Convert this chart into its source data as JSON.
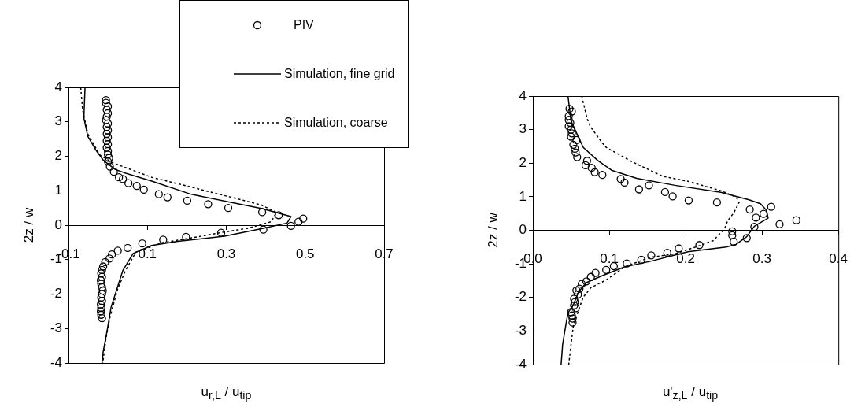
{
  "chart_data": [
    {
      "type": "scatter",
      "xlabel": "u$_{r,L}$ / u$_{tip}$",
      "ylabel": "2z / w",
      "xlim": [
        -0.1,
        0.7
      ],
      "xticks": [
        -0.1,
        0.1,
        0.3,
        0.5,
        0.7
      ],
      "ylim": [
        -4,
        4
      ],
      "yticks": [
        -4,
        -3,
        -2,
        -1,
        0,
        1,
        2,
        3,
        4
      ],
      "legend": "top right",
      "series": [
        {
          "name": "PIV",
          "type": "scatter",
          "marker": "circle",
          "color": "#000000",
          "x": [
            -0.005,
            -0.005,
            0.0,
            -0.003,
            0.0,
            -0.003,
            -0.005,
            0.0,
            -0.003,
            0.0,
            -0.003,
            0.0,
            -0.003,
            0.0,
            -0.003,
            0.0,
            0.0,
            0.003,
            0.0,
            0.005,
            0.015,
            0.028,
            0.038,
            0.052,
            0.073,
            0.091,
            0.129,
            0.151,
            0.201,
            0.254,
            0.305,
            0.391,
            0.433,
            0.495,
            0.483,
            0.464,
            0.394,
            0.287,
            0.198,
            0.14,
            0.087,
            0.05,
            0.025,
            0.01,
            0.004,
            -0.007,
            -0.012,
            -0.015,
            -0.017,
            -0.015,
            -0.018,
            -0.017,
            -0.015,
            -0.013,
            -0.015,
            -0.017,
            -0.015,
            -0.018,
            -0.017,
            -0.018,
            -0.017,
            -0.015
          ],
          "values": [
            3.63,
            3.55,
            3.45,
            3.35,
            3.25,
            3.15,
            3.05,
            2.95,
            2.85,
            2.75,
            2.65,
            2.55,
            2.45,
            2.35,
            2.25,
            2.15,
            2.05,
            1.95,
            1.85,
            1.7,
            1.55,
            1.39,
            1.34,
            1.22,
            1.14,
            1.03,
            0.9,
            0.81,
            0.71,
            0.61,
            0.5,
            0.38,
            0.29,
            0.19,
            0.1,
            -0.02,
            -0.13,
            -0.22,
            -0.34,
            -0.42,
            -0.53,
            -0.66,
            -0.74,
            -0.85,
            -0.97,
            -1.07,
            -1.2,
            -1.3,
            -1.4,
            -1.5,
            -1.6,
            -1.7,
            -1.8,
            -1.9,
            -2.0,
            -2.1,
            -2.2,
            -2.3,
            -2.4,
            -2.5,
            -2.6,
            -2.7
          ]
        },
        {
          "name": "Simulation, fine grid",
          "type": "line",
          "line_style": "solid",
          "color": "#000000",
          "x": [
            -0.058,
            -0.061,
            -0.051,
            -0.031,
            -0.012,
            0.018,
            0.045,
            0.111,
            0.21,
            0.309,
            0.391,
            0.464,
            0.454,
            0.394,
            0.295,
            0.177,
            0.111,
            0.064,
            0.038,
            0.025,
            0.008,
            -0.002,
            -0.012,
            -0.015
          ],
          "values": [
            4.0,
            3.11,
            2.58,
            2.19,
            1.89,
            1.62,
            1.51,
            1.28,
            0.9,
            0.67,
            0.48,
            0.25,
            0.06,
            -0.09,
            -0.32,
            -0.47,
            -0.59,
            -0.82,
            -1.31,
            -1.77,
            -2.38,
            -3.06,
            -3.67,
            -4.0
          ]
        },
        {
          "name": "Simulation, coarse",
          "type": "line",
          "line_style": "dotted",
          "color": "#000000",
          "x": [
            -0.069,
            -0.064,
            -0.051,
            -0.021,
            0.012,
            0.111,
            0.203,
            0.309,
            0.388,
            0.427,
            0.414,
            0.355,
            0.289,
            0.216,
            0.137,
            0.071,
            0.045,
            0.025,
            0.005,
            -0.005,
            -0.013
          ],
          "values": [
            4.0,
            3.34,
            2.65,
            2.04,
            1.81,
            1.39,
            1.13,
            0.82,
            0.59,
            0.37,
            0.1,
            -0.09,
            -0.21,
            -0.36,
            -0.51,
            -0.78,
            -1.31,
            -1.84,
            -2.68,
            -3.29,
            -4.0
          ]
        }
      ]
    },
    {
      "type": "scatter",
      "xlabel": "u'$_{z,L}$ / u$_{tip}$",
      "ylabel": "2z / w",
      "xlim": [
        0,
        0.4
      ],
      "xticks": [
        {
          "value": 0,
          "label": "0.0"
        },
        0.1,
        0.2,
        0.3,
        0.4
      ],
      "ylim": [
        -4,
        4
      ],
      "yticks": [
        -4,
        -3,
        -2,
        -1,
        0,
        1,
        2,
        3,
        4
      ],
      "series": [
        {
          "type": "scatter",
          "marker": "circle",
          "color": "#000000",
          "x": [
            0.048,
            0.051,
            0.047,
            0.047,
            0.049,
            0.047,
            0.05,
            0.051,
            0.05,
            0.057,
            0.053,
            0.055,
            0.056,
            0.058,
            0.071,
            0.069,
            0.077,
            0.081,
            0.091,
            0.115,
            0.12,
            0.139,
            0.152,
            0.173,
            0.183,
            0.204,
            0.241,
            0.284,
            0.312,
            0.302,
            0.292,
            0.345,
            0.323,
            0.29,
            0.261,
            0.261,
            0.28,
            0.263,
            0.218,
            0.191,
            0.176,
            0.155,
            0.142,
            0.123,
            0.106,
            0.096,
            0.082,
            0.076,
            0.07,
            0.064,
            0.061,
            0.057,
            0.059,
            0.054,
            0.055,
            0.054,
            0.056,
            0.05,
            0.051,
            0.052,
            0.052
          ],
          "values": [
            3.62,
            3.54,
            3.4,
            3.29,
            3.2,
            3.1,
            3.0,
            2.89,
            2.79,
            2.69,
            2.55,
            2.43,
            2.32,
            2.18,
            2.07,
            1.94,
            1.86,
            1.73,
            1.65,
            1.53,
            1.42,
            1.22,
            1.34,
            1.14,
            1.01,
            0.89,
            0.83,
            0.62,
            0.7,
            0.49,
            0.38,
            0.3,
            0.18,
            0.1,
            -0.03,
            -0.15,
            -0.23,
            -0.34,
            -0.44,
            -0.54,
            -0.67,
            -0.75,
            -0.88,
            -0.99,
            -1.07,
            -1.18,
            -1.27,
            -1.39,
            -1.52,
            -1.6,
            -1.74,
            -1.79,
            -1.91,
            -2.04,
            -2.14,
            -2.24,
            -2.32,
            -2.44,
            -2.54,
            -2.63,
            -2.75
          ]
        },
        {
          "type": "line",
          "line_style": "solid",
          "color": "#000000",
          "x": [
            0.046,
            0.05,
            0.058,
            0.066,
            0.085,
            0.103,
            0.136,
            0.186,
            0.246,
            0.283,
            0.298,
            0.306,
            0.308,
            0.296,
            0.29,
            0.28,
            0.266,
            0.253,
            0.203,
            0.153,
            0.12,
            0.09,
            0.07,
            0.06,
            0.053,
            0.046,
            0.043,
            0.039,
            0.037
          ],
          "values": [
            4.0,
            3.26,
            2.86,
            2.47,
            2.08,
            1.79,
            1.55,
            1.34,
            1.13,
            0.91,
            0.79,
            0.59,
            0.36,
            0.2,
            0.12,
            -0.19,
            -0.42,
            -0.5,
            -0.64,
            -0.93,
            -1.09,
            -1.36,
            -1.56,
            -1.83,
            -2.22,
            -2.46,
            -2.85,
            -3.4,
            -4.0
          ]
        },
        {
          "type": "line",
          "line_style": "dotted",
          "color": "#000000",
          "x": [
            0.064,
            0.071,
            0.075,
            0.09,
            0.096,
            0.13,
            0.17,
            0.203,
            0.246,
            0.266,
            0.27,
            0.263,
            0.255,
            0.251,
            0.236,
            0.213,
            0.186,
            0.153,
            0.12,
            0.096,
            0.076,
            0.066,
            0.061,
            0.053,
            0.05,
            0.047
          ],
          "values": [
            4.0,
            3.33,
            3.1,
            2.63,
            2.47,
            2.04,
            1.61,
            1.46,
            1.18,
            0.99,
            0.83,
            0.52,
            0.28,
            0.05,
            -0.31,
            -0.5,
            -0.7,
            -0.81,
            -1.09,
            -1.48,
            -1.71,
            -1.99,
            -2.3,
            -2.85,
            -3.4,
            -4.0
          ]
        }
      ]
    }
  ]
}
